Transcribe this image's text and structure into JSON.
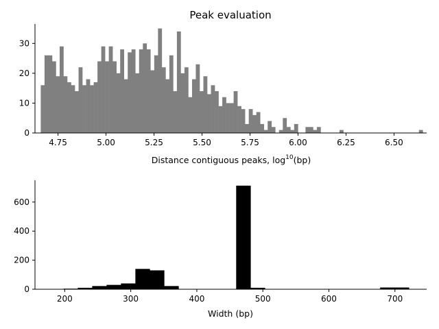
{
  "chart_data": [
    {
      "type": "bar",
      "title": "Peak evaluation",
      "xlabel_main": "Distance contiguous peaks, log",
      "xlabel_sup": "10",
      "xlabel_unit": "(bp)",
      "ylabel": "",
      "color": "#808080",
      "xlim": [
        4.63,
        6.67
      ],
      "ylim": [
        0,
        36.5
      ],
      "x_ticks": [
        4.75,
        5.0,
        5.25,
        5.5,
        5.75,
        6.0,
        6.25,
        6.5
      ],
      "x_tick_labels": [
        "4.75",
        "5.00",
        "5.25",
        "5.50",
        "5.75",
        "6.00",
        "6.25",
        "6.50"
      ],
      "y_ticks": [
        0,
        10,
        20,
        30
      ],
      "y_tick_labels": [
        "0",
        "10",
        "20",
        "30"
      ],
      "bin_start": 4.66,
      "bin_width": 0.0197,
      "values": [
        16,
        26,
        26,
        24,
        19,
        29,
        19,
        17,
        16,
        14,
        22,
        16,
        18,
        16,
        17,
        24,
        29,
        24,
        29,
        24,
        20,
        28,
        18,
        27,
        28,
        20,
        28,
        30,
        28,
        21,
        26,
        35,
        22,
        18,
        26,
        14,
        34,
        20,
        22,
        12,
        18,
        23,
        14,
        19,
        13,
        16,
        14,
        9,
        12,
        10,
        10,
        14,
        9,
        8,
        3,
        8,
        6,
        7,
        3,
        1,
        4,
        2,
        0,
        1,
        5,
        2,
        1,
        3,
        0,
        0,
        2,
        2,
        1,
        2,
        0,
        0,
        0,
        0,
        0,
        1,
        0,
        0,
        0,
        0,
        0,
        0,
        0,
        0,
        0,
        0,
        0,
        0,
        0,
        0,
        0,
        0,
        0,
        0,
        0,
        0,
        1
      ]
    },
    {
      "type": "bar",
      "title": "",
      "xlabel": "Width (bp)",
      "ylabel": "",
      "color": "#000000",
      "xlim": [
        155,
        748
      ],
      "ylim": [
        0,
        750
      ],
      "x_ticks": [
        200,
        300,
        400,
        500,
        600,
        700
      ],
      "x_tick_labels": [
        "200",
        "300",
        "400",
        "500",
        "600",
        "700"
      ],
      "y_ticks": [
        0,
        200,
        400,
        600
      ],
      "y_tick_labels": [
        "0",
        "200",
        "400",
        "600"
      ],
      "bin_start": 198,
      "bin_width": 21.8,
      "values": [
        4,
        10,
        22,
        30,
        40,
        140,
        130,
        22,
        0,
        0,
        0,
        0,
        713,
        10,
        0,
        0,
        0,
        0,
        0,
        0,
        0,
        0,
        12,
        12
      ]
    }
  ]
}
